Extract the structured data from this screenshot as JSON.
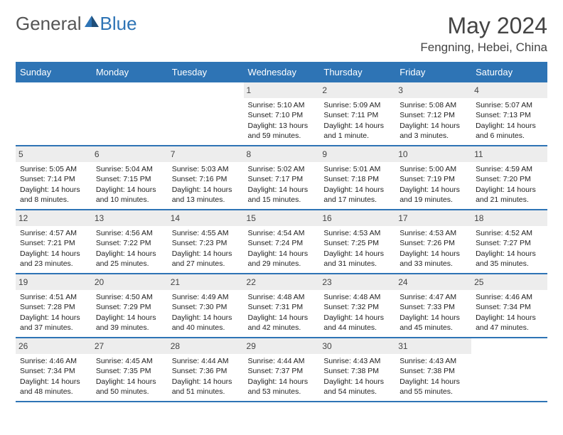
{
  "brand": {
    "part1": "General",
    "part2": "Blue"
  },
  "title": "May 2024",
  "location": "Fengning, Hebei, China",
  "colors": {
    "accent": "#2e74b5",
    "header_text": "#444444",
    "daynum_bg": "#ededed"
  },
  "weekdays": [
    "Sunday",
    "Monday",
    "Tuesday",
    "Wednesday",
    "Thursday",
    "Friday",
    "Saturday"
  ],
  "weeks": [
    [
      {
        "n": "",
        "sr": "",
        "ss": "",
        "dl": ""
      },
      {
        "n": "",
        "sr": "",
        "ss": "",
        "dl": ""
      },
      {
        "n": "",
        "sr": "",
        "ss": "",
        "dl": ""
      },
      {
        "n": "1",
        "sr": "Sunrise: 5:10 AM",
        "ss": "Sunset: 7:10 PM",
        "dl": "Daylight: 13 hours and 59 minutes."
      },
      {
        "n": "2",
        "sr": "Sunrise: 5:09 AM",
        "ss": "Sunset: 7:11 PM",
        "dl": "Daylight: 14 hours and 1 minute."
      },
      {
        "n": "3",
        "sr": "Sunrise: 5:08 AM",
        "ss": "Sunset: 7:12 PM",
        "dl": "Daylight: 14 hours and 3 minutes."
      },
      {
        "n": "4",
        "sr": "Sunrise: 5:07 AM",
        "ss": "Sunset: 7:13 PM",
        "dl": "Daylight: 14 hours and 6 minutes."
      }
    ],
    [
      {
        "n": "5",
        "sr": "Sunrise: 5:05 AM",
        "ss": "Sunset: 7:14 PM",
        "dl": "Daylight: 14 hours and 8 minutes."
      },
      {
        "n": "6",
        "sr": "Sunrise: 5:04 AM",
        "ss": "Sunset: 7:15 PM",
        "dl": "Daylight: 14 hours and 10 minutes."
      },
      {
        "n": "7",
        "sr": "Sunrise: 5:03 AM",
        "ss": "Sunset: 7:16 PM",
        "dl": "Daylight: 14 hours and 13 minutes."
      },
      {
        "n": "8",
        "sr": "Sunrise: 5:02 AM",
        "ss": "Sunset: 7:17 PM",
        "dl": "Daylight: 14 hours and 15 minutes."
      },
      {
        "n": "9",
        "sr": "Sunrise: 5:01 AM",
        "ss": "Sunset: 7:18 PM",
        "dl": "Daylight: 14 hours and 17 minutes."
      },
      {
        "n": "10",
        "sr": "Sunrise: 5:00 AM",
        "ss": "Sunset: 7:19 PM",
        "dl": "Daylight: 14 hours and 19 minutes."
      },
      {
        "n": "11",
        "sr": "Sunrise: 4:59 AM",
        "ss": "Sunset: 7:20 PM",
        "dl": "Daylight: 14 hours and 21 minutes."
      }
    ],
    [
      {
        "n": "12",
        "sr": "Sunrise: 4:57 AM",
        "ss": "Sunset: 7:21 PM",
        "dl": "Daylight: 14 hours and 23 minutes."
      },
      {
        "n": "13",
        "sr": "Sunrise: 4:56 AM",
        "ss": "Sunset: 7:22 PM",
        "dl": "Daylight: 14 hours and 25 minutes."
      },
      {
        "n": "14",
        "sr": "Sunrise: 4:55 AM",
        "ss": "Sunset: 7:23 PM",
        "dl": "Daylight: 14 hours and 27 minutes."
      },
      {
        "n": "15",
        "sr": "Sunrise: 4:54 AM",
        "ss": "Sunset: 7:24 PM",
        "dl": "Daylight: 14 hours and 29 minutes."
      },
      {
        "n": "16",
        "sr": "Sunrise: 4:53 AM",
        "ss": "Sunset: 7:25 PM",
        "dl": "Daylight: 14 hours and 31 minutes."
      },
      {
        "n": "17",
        "sr": "Sunrise: 4:53 AM",
        "ss": "Sunset: 7:26 PM",
        "dl": "Daylight: 14 hours and 33 minutes."
      },
      {
        "n": "18",
        "sr": "Sunrise: 4:52 AM",
        "ss": "Sunset: 7:27 PM",
        "dl": "Daylight: 14 hours and 35 minutes."
      }
    ],
    [
      {
        "n": "19",
        "sr": "Sunrise: 4:51 AM",
        "ss": "Sunset: 7:28 PM",
        "dl": "Daylight: 14 hours and 37 minutes."
      },
      {
        "n": "20",
        "sr": "Sunrise: 4:50 AM",
        "ss": "Sunset: 7:29 PM",
        "dl": "Daylight: 14 hours and 39 minutes."
      },
      {
        "n": "21",
        "sr": "Sunrise: 4:49 AM",
        "ss": "Sunset: 7:30 PM",
        "dl": "Daylight: 14 hours and 40 minutes."
      },
      {
        "n": "22",
        "sr": "Sunrise: 4:48 AM",
        "ss": "Sunset: 7:31 PM",
        "dl": "Daylight: 14 hours and 42 minutes."
      },
      {
        "n": "23",
        "sr": "Sunrise: 4:48 AM",
        "ss": "Sunset: 7:32 PM",
        "dl": "Daylight: 14 hours and 44 minutes."
      },
      {
        "n": "24",
        "sr": "Sunrise: 4:47 AM",
        "ss": "Sunset: 7:33 PM",
        "dl": "Daylight: 14 hours and 45 minutes."
      },
      {
        "n": "25",
        "sr": "Sunrise: 4:46 AM",
        "ss": "Sunset: 7:34 PM",
        "dl": "Daylight: 14 hours and 47 minutes."
      }
    ],
    [
      {
        "n": "26",
        "sr": "Sunrise: 4:46 AM",
        "ss": "Sunset: 7:34 PM",
        "dl": "Daylight: 14 hours and 48 minutes."
      },
      {
        "n": "27",
        "sr": "Sunrise: 4:45 AM",
        "ss": "Sunset: 7:35 PM",
        "dl": "Daylight: 14 hours and 50 minutes."
      },
      {
        "n": "28",
        "sr": "Sunrise: 4:44 AM",
        "ss": "Sunset: 7:36 PM",
        "dl": "Daylight: 14 hours and 51 minutes."
      },
      {
        "n": "29",
        "sr": "Sunrise: 4:44 AM",
        "ss": "Sunset: 7:37 PM",
        "dl": "Daylight: 14 hours and 53 minutes."
      },
      {
        "n": "30",
        "sr": "Sunrise: 4:43 AM",
        "ss": "Sunset: 7:38 PM",
        "dl": "Daylight: 14 hours and 54 minutes."
      },
      {
        "n": "31",
        "sr": "Sunrise: 4:43 AM",
        "ss": "Sunset: 7:38 PM",
        "dl": "Daylight: 14 hours and 55 minutes."
      },
      {
        "n": "",
        "sr": "",
        "ss": "",
        "dl": ""
      }
    ]
  ]
}
